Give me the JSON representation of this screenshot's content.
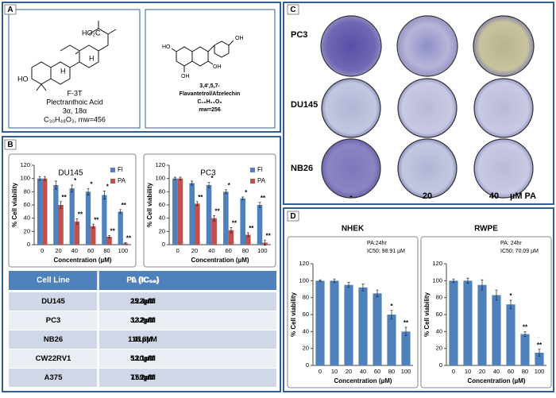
{
  "panels": [
    "A",
    "B",
    "C",
    "D"
  ],
  "structures": [
    {
      "labels": [
        "HO₂C",
        "H",
        "H",
        "HO"
      ],
      "name": "F-3T",
      "caption": [
        "Plectranthoic Acid",
        "3α, 18α",
        "C₃₀H₄₈O₃, mw=456"
      ]
    },
    {
      "labels": [
        "OH",
        "HO",
        "OH",
        "OH"
      ],
      "caption": [
        "3,4',5,7-",
        "Flavantetrol/Afzelechin",
        "C₁₅H₁₄O₅",
        "mw=256"
      ]
    }
  ],
  "table": {
    "header": [
      "Cell Line",
      "FL (IC₅₀)",
      "PA (IC₅₀)"
    ],
    "rows": [
      [
        "DU145",
        "122µM",
        "25.4µM"
      ],
      [
        "PC3",
        "132µM",
        "32.2µM"
      ],
      [
        "NB26",
        "116.6µM",
        "41µM"
      ],
      [
        "CW22RV1",
        "120µM",
        "53.1µM"
      ],
      [
        "A375",
        "159µM",
        "77.2µM"
      ]
    ]
  },
  "wells": {
    "rows": [
      "PC3",
      "DU145",
      "NB26"
    ],
    "columns": [
      "-",
      "20",
      "40"
    ],
    "unit": "µM PA"
  },
  "chart_data": [
    {
      "type": "bar",
      "title": "DU145",
      "ylabel": "% Cell viability",
      "xlabel": "Concentration (µM)",
      "categories": [
        "0",
        "20",
        "40",
        "60",
        "80",
        "100"
      ],
      "series": [
        {
          "name": "Fl",
          "color": "#4f81bd",
          "values": [
            100,
            90,
            85,
            80,
            75,
            50
          ],
          "errors": [
            3,
            6,
            5,
            5,
            6,
            3
          ],
          "sig": [
            null,
            null,
            "*",
            "*",
            "*",
            "**"
          ]
        },
        {
          "name": "PA",
          "color": "#c0504d",
          "values": [
            100,
            60,
            35,
            28,
            12,
            2
          ],
          "errors": [
            3,
            5,
            4,
            3,
            2,
            1
          ],
          "sig": [
            null,
            "**",
            "**",
            "**",
            "**",
            "**"
          ]
        }
      ],
      "ylim": [
        0,
        120
      ],
      "yticks": [
        0,
        20,
        40,
        60,
        80,
        100,
        120
      ],
      "legend": "top-right"
    },
    {
      "type": "bar",
      "title": "PC3",
      "ylabel": "% Cell viability",
      "xlabel": "Concentration (µM)",
      "categories": [
        "0",
        "20",
        "40",
        "60",
        "80",
        "100"
      ],
      "series": [
        {
          "name": "Fl",
          "color": "#4f81bd",
          "values": [
            100,
            93,
            90,
            80,
            70,
            60
          ],
          "errors": [
            2,
            3,
            4,
            3,
            2,
            4
          ],
          "sig": [
            null,
            null,
            "*",
            "*",
            "*",
            "**"
          ]
        },
        {
          "name": "PA",
          "color": "#c0504d",
          "values": [
            100,
            62,
            40,
            22,
            15,
            3
          ],
          "errors": [
            2,
            3,
            4,
            4,
            3,
            4
          ],
          "sig": [
            null,
            "**",
            "**",
            "**",
            "**",
            "**"
          ]
        }
      ],
      "ylim": [
        0,
        120
      ],
      "yticks": [
        0,
        20,
        40,
        60,
        80,
        100,
        120
      ],
      "legend": "top-right"
    },
    {
      "type": "bar",
      "title": "NHEK",
      "ylabel": "% Cell viability",
      "xlabel": "Concentration (µM)",
      "notes": [
        "PA:24hr",
        "IC50: 98.91 µM"
      ],
      "categories": [
        "0",
        "10",
        "20",
        "40",
        "60",
        "80",
        "100"
      ],
      "color": "#4f81bd",
      "values": [
        100,
        100,
        95,
        92,
        85,
        60,
        40
      ],
      "errors": [
        1,
        2,
        3,
        4,
        4,
        5,
        5
      ],
      "sig": [
        null,
        null,
        null,
        null,
        null,
        "*",
        "**"
      ],
      "ylim": [
        0,
        120
      ],
      "yticks": [
        0,
        20,
        40,
        60,
        80,
        100,
        120
      ]
    },
    {
      "type": "bar",
      "title": "RWPE",
      "ylabel": "% Cell viability",
      "xlabel": "Concentration (µM)",
      "notes": [
        "PA: 24hr",
        "IC50: 70.09 µM"
      ],
      "categories": [
        "0",
        "10",
        "20",
        "40",
        "60",
        "80",
        "100"
      ],
      "color": "#4f81bd",
      "values": [
        100,
        100,
        95,
        83,
        72,
        37,
        15
      ],
      "errors": [
        2,
        3,
        6,
        6,
        5,
        3,
        4
      ],
      "sig": [
        null,
        null,
        null,
        null,
        "*",
        "**",
        "**"
      ],
      "ylim": [
        0,
        120
      ],
      "yticks": [
        0,
        20,
        40,
        60,
        80,
        100,
        120
      ]
    }
  ]
}
